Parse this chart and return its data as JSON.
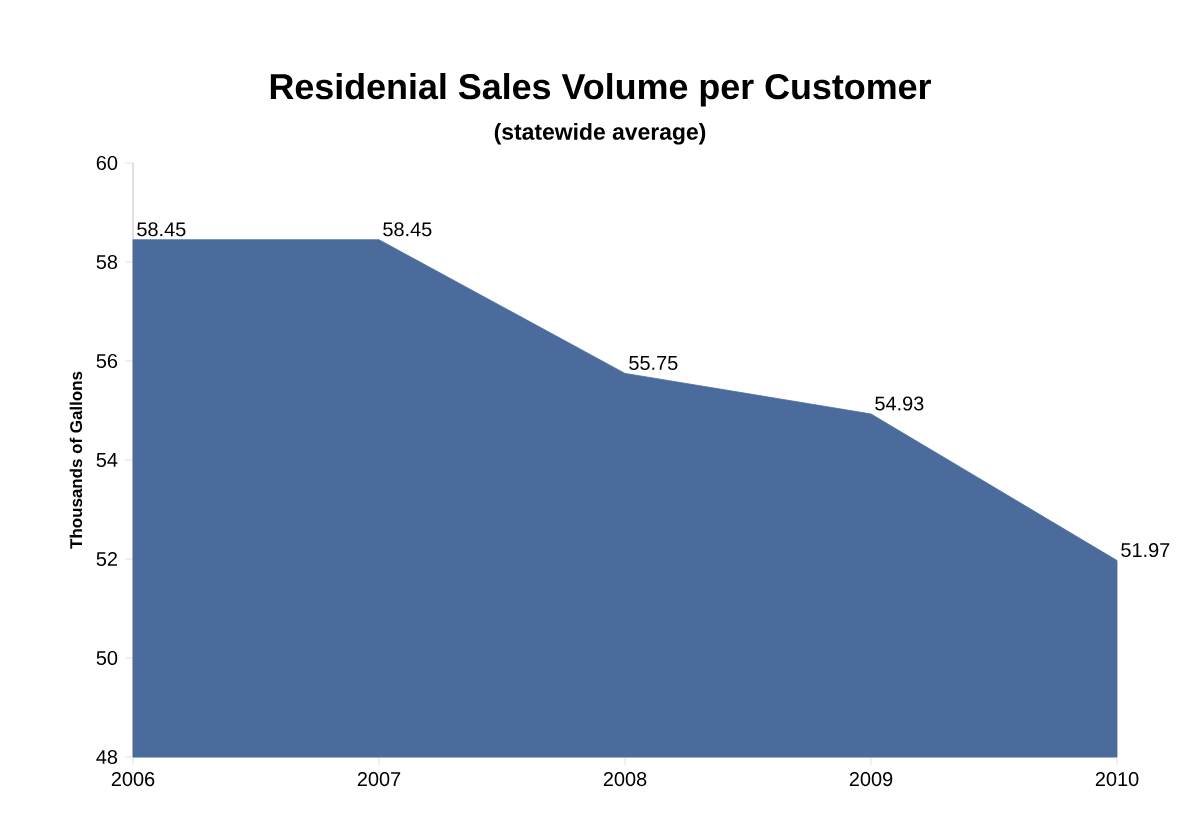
{
  "chart_data": {
    "type": "area",
    "title": "Residenial Sales Volume per Customer",
    "subtitle": "(statewide average)",
    "ylabel": "Thousands of Gallons",
    "categories": [
      "2006",
      "2007",
      "2008",
      "2009",
      "2010"
    ],
    "values": [
      58.45,
      58.45,
      55.75,
      54.93,
      51.97
    ],
    "color": "#4a6b9c",
    "ylim": [
      48,
      60
    ],
    "yticks": [
      48,
      50,
      52,
      54,
      56,
      58,
      60
    ],
    "data_labels": true,
    "grid": false
  }
}
